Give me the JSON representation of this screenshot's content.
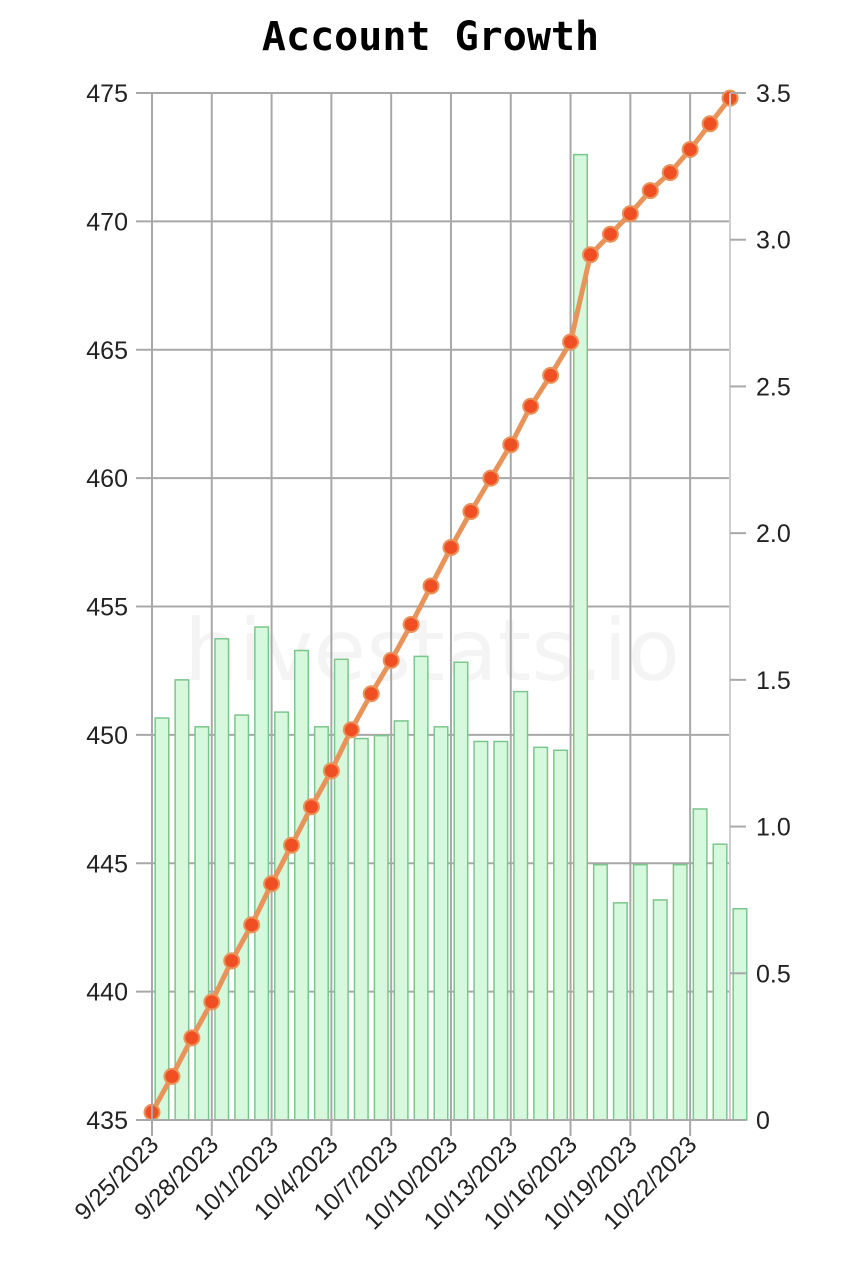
{
  "chart_data": {
    "type": "bar+line",
    "title": "Account Growth",
    "watermark": "hivestats.io",
    "x": [
      "9/25/2023",
      "9/26/2023",
      "9/27/2023",
      "9/28/2023",
      "9/29/2023",
      "9/30/2023",
      "10/1/2023",
      "10/2/2023",
      "10/3/2023",
      "10/4/2023",
      "10/5/2023",
      "10/6/2023",
      "10/7/2023",
      "10/8/2023",
      "10/9/2023",
      "10/10/2023",
      "10/11/2023",
      "10/12/2023",
      "10/13/2023",
      "10/14/2023",
      "10/15/2023",
      "10/16/2023",
      "10/17/2023",
      "10/18/2023",
      "10/19/2023",
      "10/20/2023",
      "10/21/2023",
      "10/22/2023",
      "10/23/2023",
      "10/24/2023"
    ],
    "x_tick_labels": [
      "9/25/2023",
      "9/28/2023",
      "10/1/2023",
      "10/4/2023",
      "10/7/2023",
      "10/10/2023",
      "10/13/2023",
      "10/16/2023",
      "10/19/2023",
      "10/22/2023"
    ],
    "left_axis": {
      "min": 435,
      "max": 475,
      "ticks": [
        435,
        440,
        445,
        450,
        455,
        460,
        465,
        470,
        475
      ]
    },
    "right_axis": {
      "min": 0,
      "max": 3.5,
      "ticks": [
        0,
        0.5,
        1.0,
        1.5,
        2.0,
        2.5,
        3.0,
        3.5
      ],
      "tick_labels": [
        "0",
        "0.5",
        "1.0",
        "1.5",
        "2.0",
        "2.5",
        "3.0",
        "3.5"
      ]
    },
    "series": [
      {
        "type": "bar",
        "axis": "right",
        "color": "#d6f8dc",
        "edge_color": "#7bc68c",
        "values": [
          1.37,
          1.5,
          1.34,
          1.64,
          1.38,
          1.68,
          1.39,
          1.6,
          1.34,
          1.57,
          1.3,
          1.31,
          1.36,
          1.58,
          1.34,
          1.56,
          1.29,
          1.29,
          1.46,
          1.27,
          1.26,
          3.29,
          0.87,
          0.74,
          0.87,
          0.75,
          0.87,
          1.06,
          0.94,
          0.72
        ]
      },
      {
        "type": "line",
        "axis": "left",
        "color": "#e8935a",
        "marker_color": "#f04e23",
        "values": [
          435.3,
          436.7,
          438.2,
          439.6,
          441.2,
          442.6,
          444.2,
          445.7,
          447.2,
          448.6,
          450.2,
          451.6,
          452.9,
          454.3,
          455.8,
          457.3,
          458.7,
          460.0,
          461.3,
          462.8,
          464.0,
          465.3,
          468.7,
          469.5,
          470.3,
          471.2,
          471.9,
          472.8,
          473.8,
          474.8
        ]
      }
    ],
    "grid": true,
    "legend": "none"
  }
}
